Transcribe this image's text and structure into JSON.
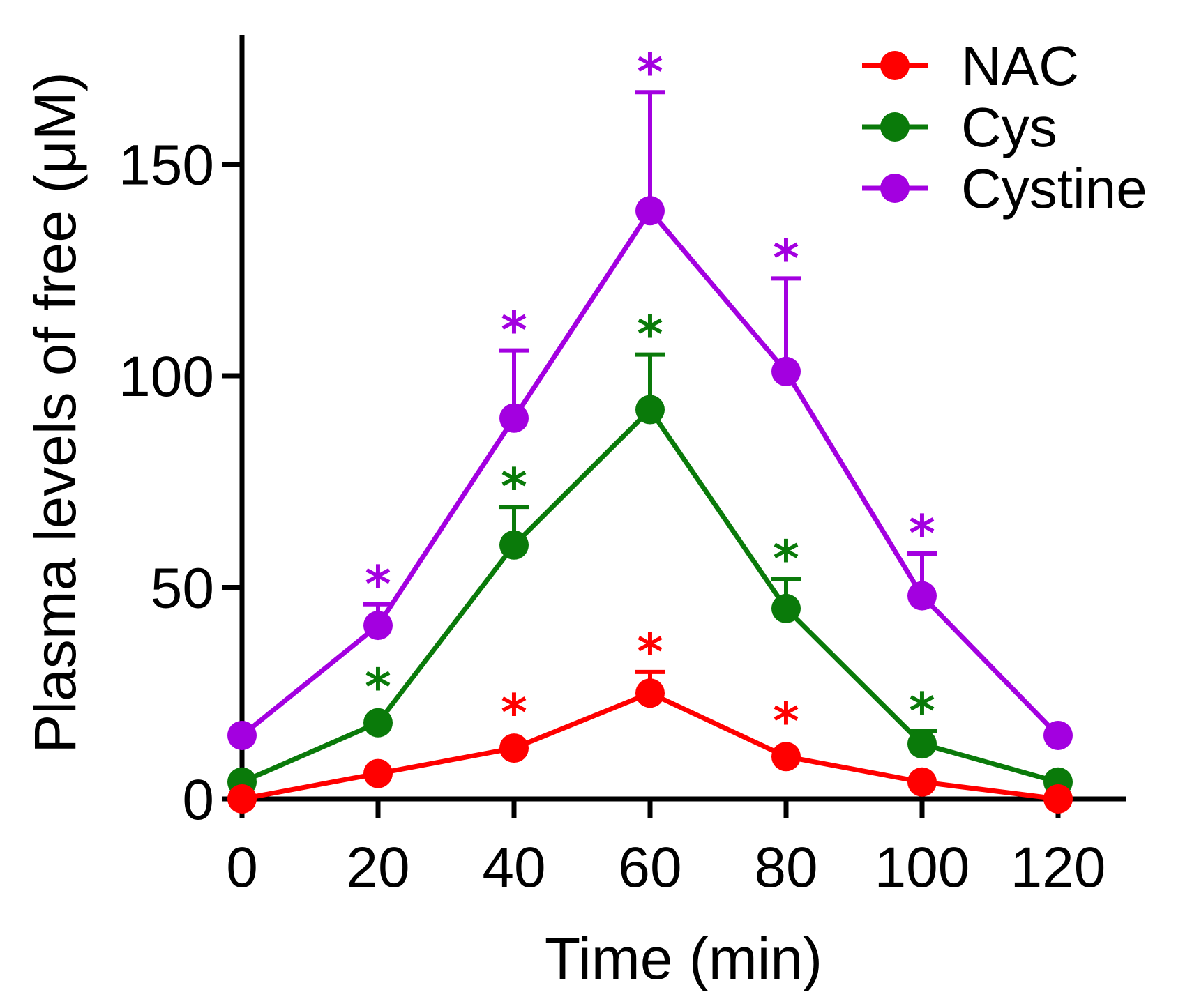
{
  "chart_data": {
    "type": "line",
    "xlabel": "Time (min)",
    "ylabel": "Plasma levels of free (μM)",
    "x": [
      0,
      20,
      40,
      60,
      80,
      100,
      120
    ],
    "xticks": [
      "0",
      "20",
      "40",
      "60",
      "80",
      "100",
      "120"
    ],
    "yticks": [
      "0",
      "50",
      "100",
      "150"
    ],
    "xlim": [
      0,
      130
    ],
    "ylim": [
      0,
      180
    ],
    "grid": false,
    "legend_position": "top-right",
    "significance_marker": "*",
    "series": [
      {
        "name": "Cystine",
        "color": "#a300e0",
        "values": [
          15,
          41,
          90,
          139,
          101,
          48,
          15
        ],
        "error_upper": [
          0,
          5,
          16,
          28,
          22,
          10,
          0
        ],
        "significant": [
          false,
          true,
          true,
          true,
          true,
          true,
          false
        ]
      },
      {
        "name": "Cys",
        "color": "#0a7a0a",
        "values": [
          4,
          18,
          60,
          92,
          45,
          13,
          4
        ],
        "error_upper": [
          0,
          0,
          9,
          13,
          7,
          3,
          0
        ],
        "significant": [
          false,
          true,
          true,
          true,
          true,
          true,
          false
        ]
      },
      {
        "name": "NAC",
        "color": "#ff0000",
        "values": [
          0,
          6,
          12,
          25,
          10,
          4,
          0
        ],
        "error_upper": [
          0,
          0,
          0,
          5,
          0,
          0,
          0
        ],
        "significant": [
          false,
          false,
          true,
          true,
          true,
          false,
          false
        ]
      }
    ],
    "legend_order": [
      "NAC",
      "Cys",
      "Cystine"
    ]
  }
}
